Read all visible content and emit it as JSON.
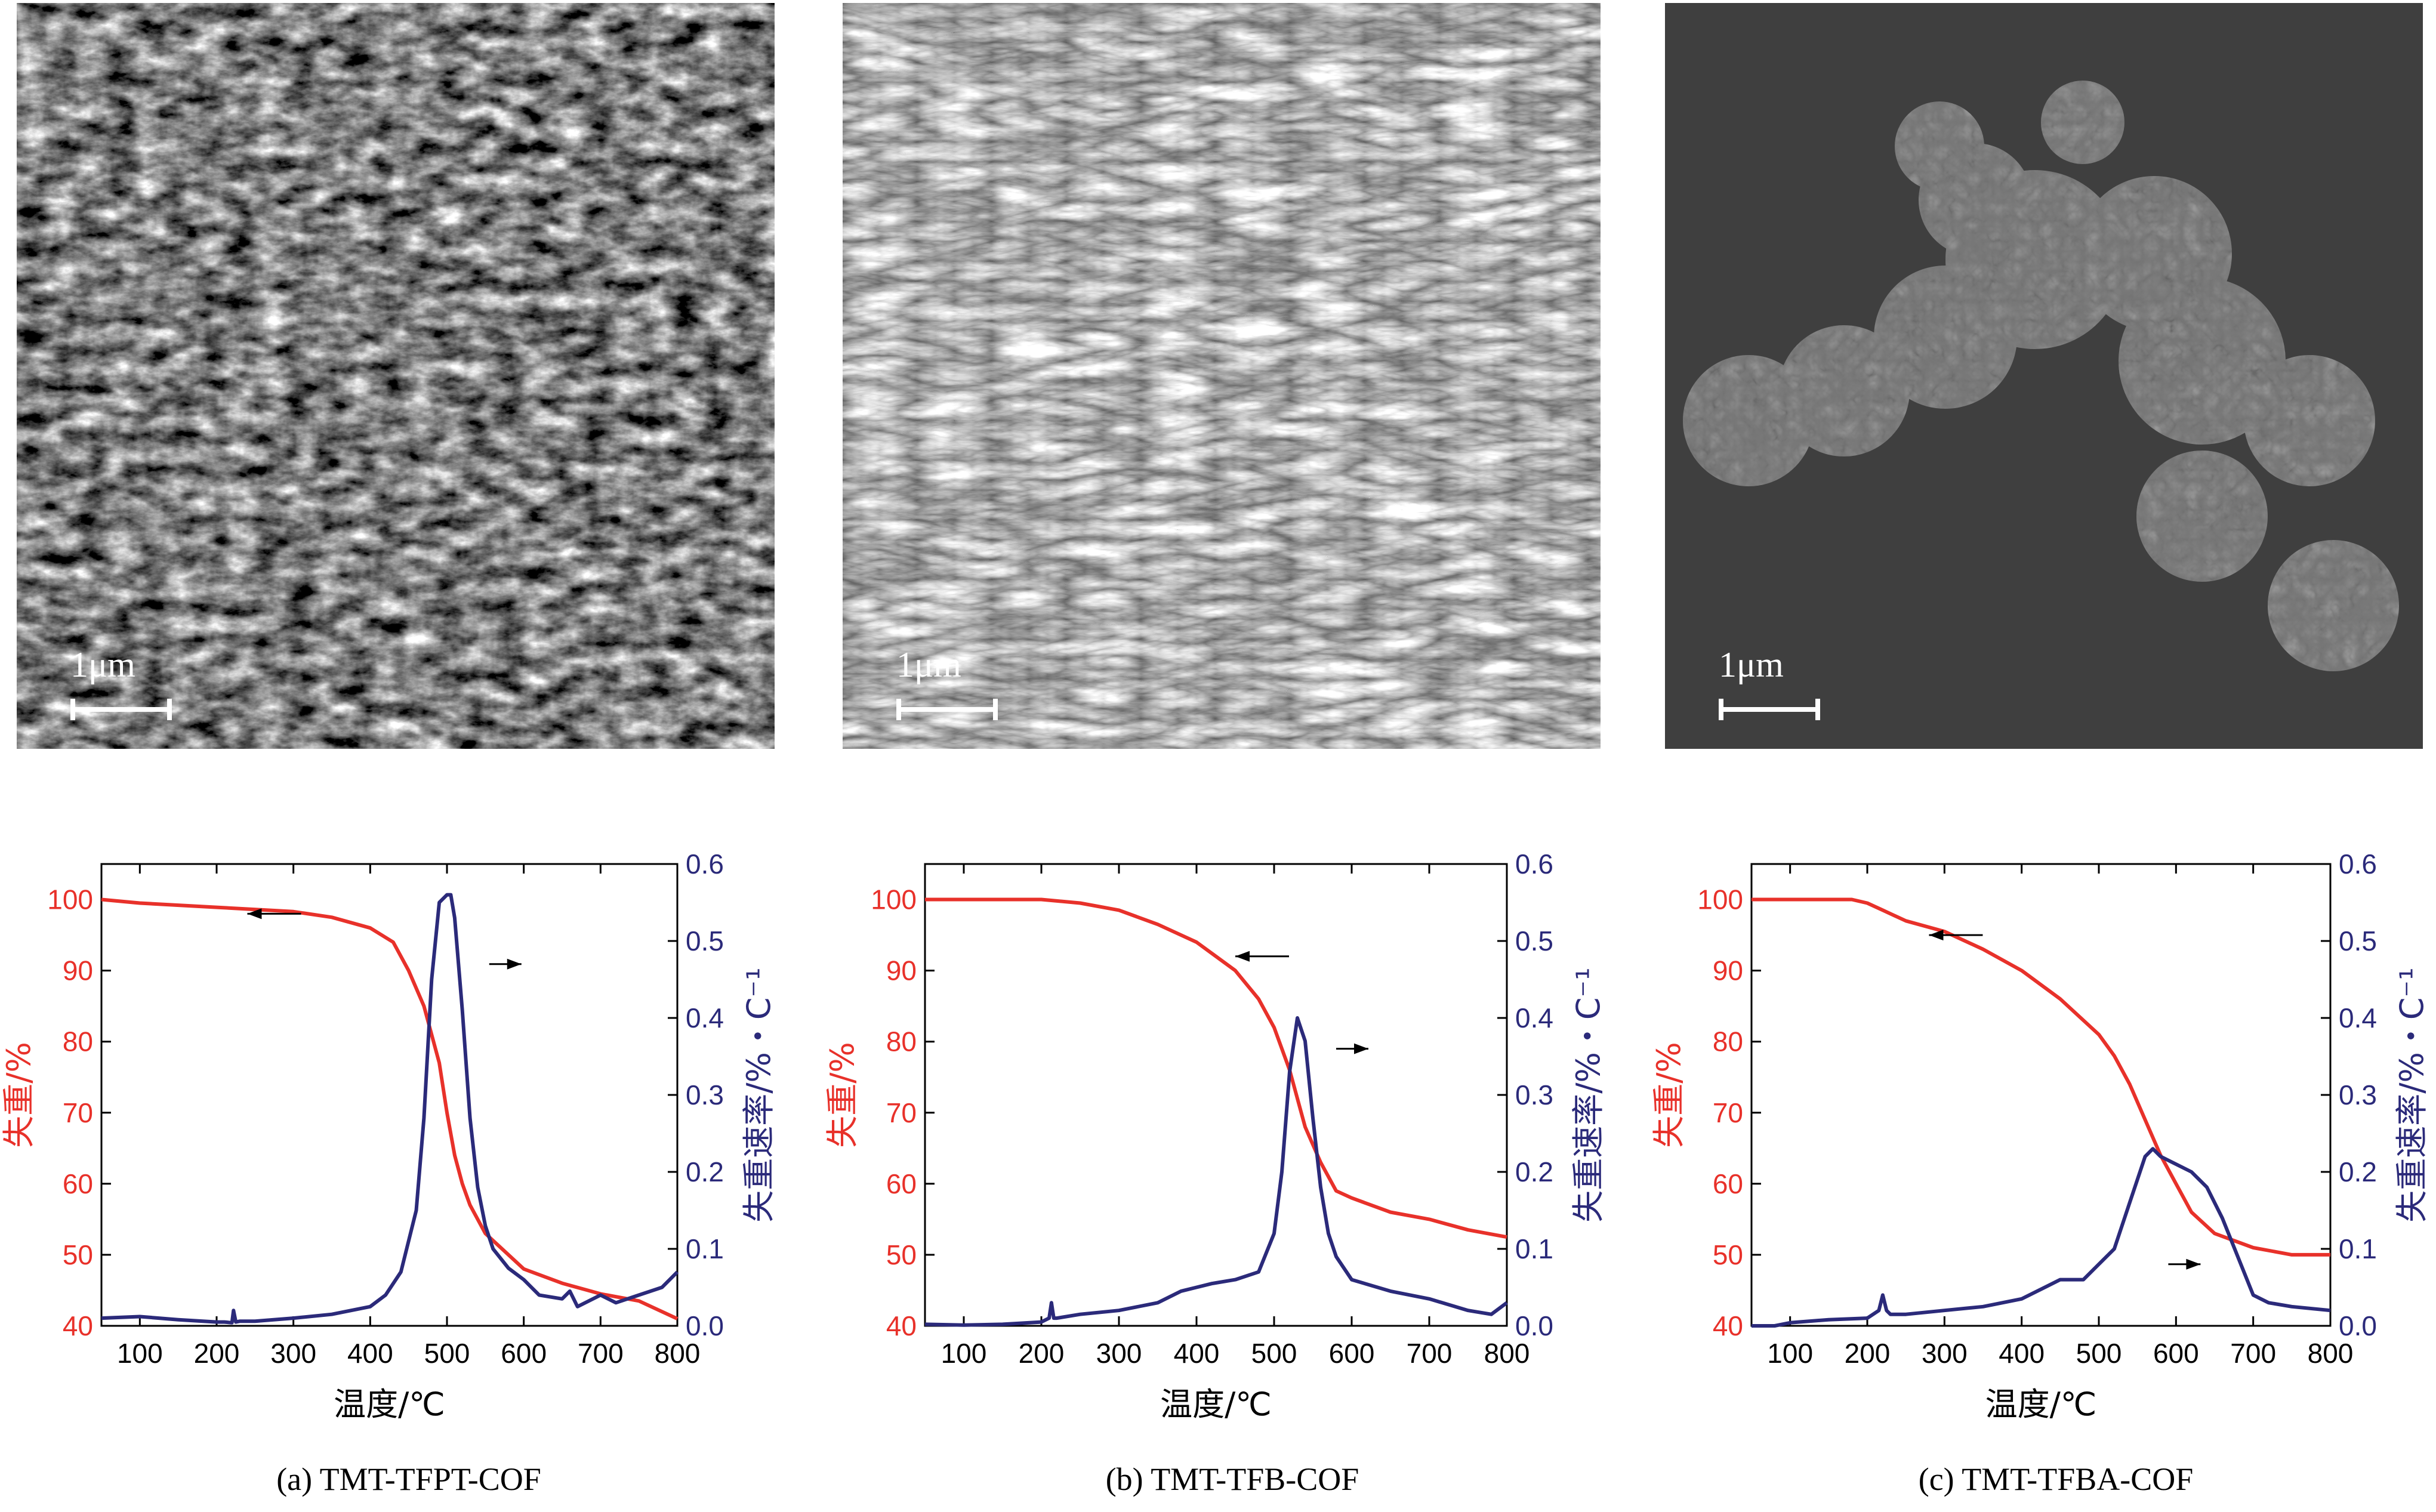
{
  "sem_panels": [
    {
      "scale_label": "1μm",
      "style": "dark-fibrous"
    },
    {
      "scale_label": "1μm",
      "style": "rods"
    },
    {
      "scale_label": "1μm",
      "style": "spheres"
    }
  ],
  "captions": [
    "(a) TMT-TFPT-COF",
    "(b) TMT-TFB-COF",
    "(c) TMT-TFBA-COF"
  ],
  "colors": {
    "weight": "#e8312a",
    "rate": "#2b2a7a",
    "axis": "#000000"
  },
  "chart_data": [
    {
      "type": "line",
      "xlabel": "温度/℃",
      "ylabel_left": "失重/%",
      "ylabel_right": "失重速率/%・C⁻¹",
      "xlim": [
        50,
        800
      ],
      "ylim_left": [
        40,
        105
      ],
      "ylim_right": [
        0,
        0.6
      ],
      "xticks": [
        100,
        200,
        300,
        400,
        500,
        600,
        700,
        800
      ],
      "yticks_left": [
        40,
        50,
        60,
        70,
        80,
        90,
        100
      ],
      "yticks_right": [
        "0.0",
        "0.1",
        "0.2",
        "0.3",
        "0.4",
        "0.5",
        "0.6"
      ],
      "series": [
        {
          "axis": "left",
          "x": [
            50,
            100,
            200,
            300,
            350,
            400,
            430,
            450,
            470,
            490,
            500,
            510,
            520,
            530,
            550,
            570,
            600,
            650,
            700,
            750,
            800
          ],
          "y": [
            100,
            99.5,
            98.9,
            98.3,
            97.5,
            96,
            94,
            90,
            85,
            77,
            70,
            64,
            60,
            57,
            53,
            51,
            48,
            46,
            44.5,
            43.5,
            41
          ]
        },
        {
          "axis": "right",
          "x": [
            50,
            100,
            150,
            200,
            210,
            220,
            222,
            225,
            230,
            250,
            300,
            350,
            400,
            420,
            440,
            460,
            470,
            480,
            490,
            500,
            505,
            510,
            520,
            530,
            540,
            550,
            560,
            580,
            600,
            620,
            650,
            660,
            670,
            700,
            720,
            750,
            780,
            800
          ],
          "y": [
            0.01,
            0.012,
            0.008,
            0.005,
            0.005,
            0.004,
            0.02,
            0.005,
            0.006,
            0.006,
            0.01,
            0.015,
            0.025,
            0.04,
            0.07,
            0.15,
            0.27,
            0.45,
            0.55,
            0.56,
            0.56,
            0.53,
            0.41,
            0.27,
            0.18,
            0.13,
            0.1,
            0.075,
            0.06,
            0.04,
            0.035,
            0.045,
            0.025,
            0.04,
            0.03,
            0.04,
            0.05,
            0.07
          ]
        }
      ],
      "arrows": [
        {
          "points_to": "left",
          "x": 240,
          "y_left": 98
        },
        {
          "points_to": "right",
          "x": 555,
          "y_right": 0.47
        }
      ]
    },
    {
      "type": "line",
      "xlabel": "温度/℃",
      "ylabel_left": "失重/%",
      "ylabel_right": "失重速率/%・C⁻¹",
      "xlim": [
        50,
        800
      ],
      "ylim_left": [
        40,
        105
      ],
      "ylim_right": [
        0,
        0.6
      ],
      "xticks": [
        100,
        200,
        300,
        400,
        500,
        600,
        700,
        800
      ],
      "yticks_left": [
        40,
        50,
        60,
        70,
        80,
        90,
        100
      ],
      "yticks_right": [
        "0.0",
        "0.1",
        "0.2",
        "0.3",
        "0.4",
        "0.5",
        "0.6"
      ],
      "series": [
        {
          "axis": "left",
          "x": [
            50,
            100,
            200,
            250,
            300,
            350,
            400,
            450,
            480,
            500,
            520,
            540,
            560,
            570,
            580,
            600,
            650,
            700,
            750,
            800
          ],
          "y": [
            100,
            100,
            100,
            99.5,
            98.5,
            96.5,
            94,
            90,
            86,
            82,
            76,
            68,
            63,
            61,
            59,
            58,
            56,
            55,
            53.5,
            52.5
          ]
        },
        {
          "axis": "right",
          "x": [
            50,
            100,
            150,
            200,
            210,
            213,
            216,
            220,
            250,
            300,
            350,
            380,
            400,
            420,
            450,
            480,
            500,
            510,
            520,
            530,
            540,
            550,
            560,
            570,
            580,
            600,
            650,
            700,
            750,
            780,
            800
          ],
          "y": [
            0.002,
            0.001,
            0.002,
            0.005,
            0.01,
            0.03,
            0.01,
            0.01,
            0.015,
            0.02,
            0.03,
            0.045,
            0.05,
            0.055,
            0.06,
            0.07,
            0.12,
            0.2,
            0.33,
            0.4,
            0.37,
            0.27,
            0.18,
            0.12,
            0.09,
            0.06,
            0.045,
            0.035,
            0.02,
            0.015,
            0.03
          ]
        }
      ],
      "arrows": [
        {
          "points_to": "left",
          "x": 450,
          "y_left": 92
        },
        {
          "points_to": "right",
          "x": 580,
          "y_right": 0.36
        }
      ]
    },
    {
      "type": "line",
      "xlabel": "温度/℃",
      "ylabel_left": "失重/%",
      "ylabel_right": "失重速率/%・C⁻¹",
      "xlim": [
        50,
        800
      ],
      "ylim_left": [
        40,
        105
      ],
      "ylim_right": [
        0,
        0.6
      ],
      "xticks": [
        100,
        200,
        300,
        400,
        500,
        600,
        700,
        800
      ],
      "yticks_left": [
        40,
        50,
        60,
        70,
        80,
        90,
        100
      ],
      "yticks_right": [
        "0.0",
        "0.1",
        "0.2",
        "0.3",
        "0.4",
        "0.5",
        "0.6"
      ],
      "series": [
        {
          "axis": "left",
          "x": [
            50,
            100,
            150,
            180,
            200,
            220,
            250,
            300,
            350,
            400,
            450,
            500,
            520,
            540,
            560,
            580,
            600,
            620,
            650,
            700,
            750,
            800
          ],
          "y": [
            100,
            100,
            100,
            100,
            99.5,
            98.5,
            97,
            95.5,
            93,
            90,
            86,
            81,
            78,
            74,
            69,
            64,
            60,
            56,
            53,
            51,
            50,
            50
          ]
        },
        {
          "axis": "right",
          "x": [
            50,
            80,
            100,
            150,
            200,
            215,
            220,
            225,
            230,
            250,
            300,
            350,
            400,
            450,
            480,
            500,
            520,
            540,
            560,
            570,
            580,
            600,
            620,
            640,
            660,
            680,
            700,
            720,
            750,
            800
          ],
          "y": [
            0.0,
            0.0,
            0.004,
            0.008,
            0.01,
            0.02,
            0.04,
            0.02,
            0.015,
            0.015,
            0.02,
            0.025,
            0.035,
            0.06,
            0.06,
            0.08,
            0.1,
            0.16,
            0.22,
            0.23,
            0.22,
            0.21,
            0.2,
            0.18,
            0.14,
            0.09,
            0.04,
            0.03,
            0.025,
            0.02
          ]
        }
      ],
      "arrows": [
        {
          "points_to": "left",
          "x": 280,
          "y_left": 95
        },
        {
          "points_to": "right",
          "x": 590,
          "y_right": 0.08
        }
      ]
    }
  ]
}
